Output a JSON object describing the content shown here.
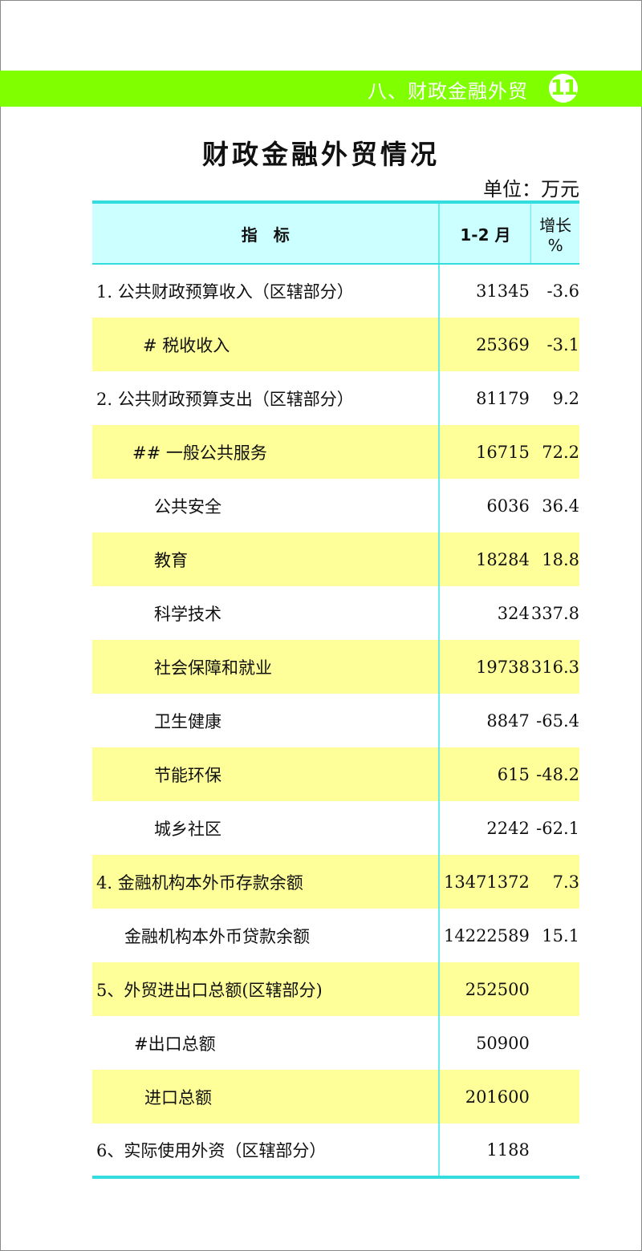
{
  "header": {
    "section": "八、财政金融外贸",
    "page_number": "11"
  },
  "title": "财政金融外贸情况",
  "unit": "单位：万元",
  "table": {
    "columns": [
      "指　标",
      "1-2 月",
      "增长 %"
    ],
    "rows": [
      {
        "label": "1. 公共财政预算收入（区辖部分）",
        "value": "31345",
        "growth": "-3.6"
      },
      {
        "label": "# 税收收入",
        "value": "25369",
        "growth": "-3.1"
      },
      {
        "label": "2. 公共财政预算支出（区辖部分）",
        "value": "81179",
        "growth": "9.2"
      },
      {
        "label": "## 一般公共服务",
        "value": "16715",
        "growth": "72.2"
      },
      {
        "label": "公共安全",
        "value": "6036",
        "growth": "36.4"
      },
      {
        "label": "教育",
        "value": "18284",
        "growth": "18.8"
      },
      {
        "label": "科学技术",
        "value": "324",
        "growth": "337.8"
      },
      {
        "label": "社会保障和就业",
        "value": "19738",
        "growth": "316.3"
      },
      {
        "label": "卫生健康",
        "value": "8847",
        "growth": "-65.4"
      },
      {
        "label": "节能环保",
        "value": "615",
        "growth": "-48.2"
      },
      {
        "label": "城乡社区",
        "value": "2242",
        "growth": "-62.1"
      },
      {
        "label": "4. 金融机构本外币存款余额",
        "value": "13471372",
        "growth": "7.3"
      },
      {
        "label": "金融机构本外币贷款余额",
        "value": "14222589",
        "growth": "15.1"
      },
      {
        "label": "5、外贸进出口总额(区辖部分)",
        "value": "252500",
        "growth": ""
      },
      {
        "label": "#出口总额",
        "value": "50900",
        "growth": ""
      },
      {
        "label": "进口总额",
        "value": "201600",
        "growth": ""
      },
      {
        "label": "6、实际使用外资（区辖部分）",
        "value": "1188",
        "growth": ""
      }
    ]
  },
  "colors": {
    "band": "#80ff00",
    "header_bg": "#ccffff",
    "highlight_row": "#ffff99",
    "rule": "#33dddd"
  }
}
